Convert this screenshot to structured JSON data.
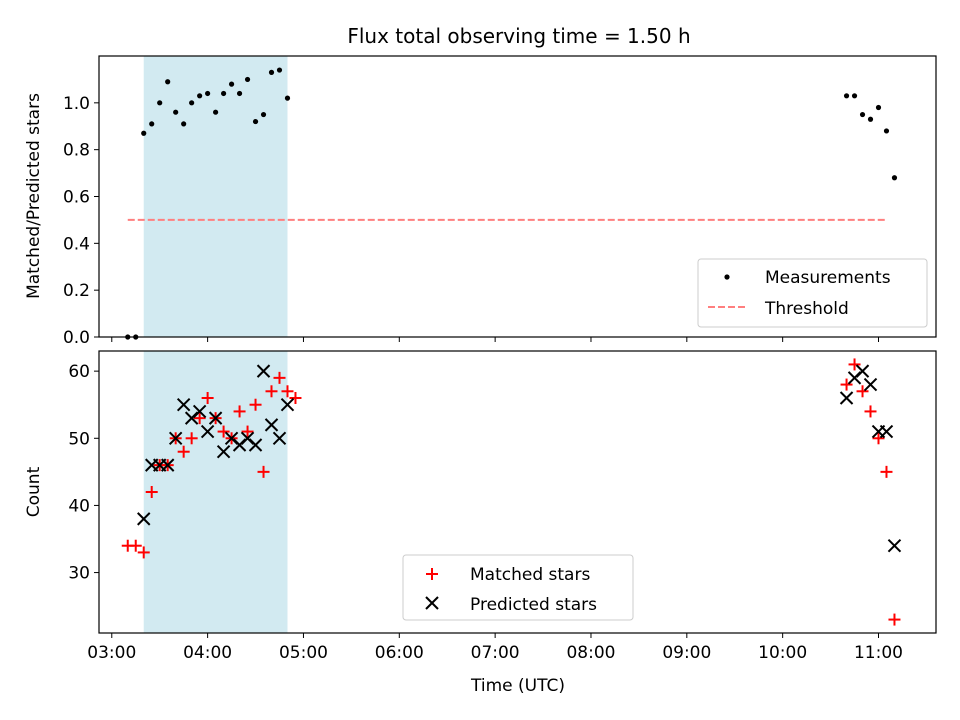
{
  "figure": {
    "title": "Flux total observing time = 1.50 h",
    "xlabel": "Time (UTC)"
  },
  "chart_data": [
    {
      "type": "scatter",
      "panel": "top",
      "ylabel": "Matched/Predicted stars",
      "xlim": [
        "02:52",
        "11:36"
      ],
      "ylim": [
        0,
        1.2
      ],
      "x_ticks": [
        "03:00",
        "04:00",
        "05:00",
        "06:00",
        "07:00",
        "08:00",
        "09:00",
        "10:00",
        "11:00"
      ],
      "y_ticks": [
        "0.0",
        "0.2",
        "0.4",
        "0.6",
        "0.8",
        "1.0"
      ],
      "grid": false,
      "legend": "lower-right",
      "shaded_region": {
        "start": "03:20",
        "end": "04:50",
        "color": "#add8e6"
      },
      "series": [
        {
          "name": "Measurements",
          "marker": "dot",
          "color": "#000000",
          "points": [
            [
              "03:10",
              0.0
            ],
            [
              "03:15",
              0.0
            ],
            [
              "03:20",
              0.87
            ],
            [
              "03:25",
              0.91
            ],
            [
              "03:30",
              1.0
            ],
            [
              "03:35",
              1.09
            ],
            [
              "03:40",
              0.96
            ],
            [
              "03:45",
              0.91
            ],
            [
              "03:50",
              1.0
            ],
            [
              "03:55",
              1.03
            ],
            [
              "04:00",
              1.04
            ],
            [
              "04:05",
              0.96
            ],
            [
              "04:10",
              1.04
            ],
            [
              "04:15",
              1.08
            ],
            [
              "04:20",
              1.04
            ],
            [
              "04:25",
              1.1
            ],
            [
              "04:30",
              0.92
            ],
            [
              "04:35",
              0.95
            ],
            [
              "04:40",
              1.13
            ],
            [
              "04:45",
              1.14
            ],
            [
              "04:50",
              1.02
            ],
            [
              "10:40",
              1.03
            ],
            [
              "10:45",
              1.03
            ],
            [
              "10:50",
              0.95
            ],
            [
              "10:55",
              0.93
            ],
            [
              "11:00",
              0.98
            ],
            [
              "11:05",
              0.88
            ],
            [
              "11:10",
              0.68
            ]
          ]
        },
        {
          "name": "Threshold",
          "style": "dashed",
          "color": "#ff7f7f",
          "line": [
            [
              "03:10",
              0.5
            ],
            [
              "11:05",
              0.5
            ]
          ]
        }
      ]
    },
    {
      "type": "scatter",
      "panel": "bottom",
      "ylabel": "Count",
      "xlim": [
        "02:52",
        "11:36"
      ],
      "ylim": [
        21,
        63
      ],
      "x_ticks": [
        "03:00",
        "04:00",
        "05:00",
        "06:00",
        "07:00",
        "08:00",
        "09:00",
        "10:00",
        "11:00"
      ],
      "y_ticks": [
        "30",
        "40",
        "50",
        "60"
      ],
      "grid": false,
      "legend": "lower-center",
      "shaded_region": {
        "start": "03:20",
        "end": "04:50",
        "color": "#add8e6"
      },
      "series": [
        {
          "name": "Matched stars",
          "marker": "plus",
          "color": "#ff0000",
          "points": [
            [
              "03:10",
              34
            ],
            [
              "03:15",
              34
            ],
            [
              "03:20",
              33
            ],
            [
              "03:25",
              42
            ],
            [
              "03:30",
              46
            ],
            [
              "03:35",
              46
            ],
            [
              "03:40",
              50
            ],
            [
              "03:45",
              48
            ],
            [
              "03:50",
              50
            ],
            [
              "03:55",
              53
            ],
            [
              "04:00",
              56
            ],
            [
              "04:05",
              53
            ],
            [
              "04:10",
              51
            ],
            [
              "04:15",
              50
            ],
            [
              "04:20",
              54
            ],
            [
              "04:25",
              51
            ],
            [
              "04:30",
              55
            ],
            [
              "04:35",
              45
            ],
            [
              "04:40",
              57
            ],
            [
              "04:45",
              59
            ],
            [
              "04:50",
              57
            ],
            [
              "04:55",
              56
            ],
            [
              "10:40",
              58
            ],
            [
              "10:45",
              61
            ],
            [
              "10:50",
              57
            ],
            [
              "10:55",
              54
            ],
            [
              "11:00",
              50
            ],
            [
              "11:05",
              45
            ],
            [
              "11:10",
              23
            ]
          ]
        },
        {
          "name": "Predicted stars",
          "marker": "x",
          "color": "#000000",
          "points": [
            [
              "03:20",
              38
            ],
            [
              "03:25",
              46
            ],
            [
              "03:30",
              46
            ],
            [
              "03:35",
              46
            ],
            [
              "03:40",
              50
            ],
            [
              "03:45",
              55
            ],
            [
              "03:50",
              53
            ],
            [
              "03:55",
              54
            ],
            [
              "04:00",
              51
            ],
            [
              "04:05",
              53
            ],
            [
              "04:10",
              48
            ],
            [
              "04:15",
              50
            ],
            [
              "04:20",
              49
            ],
            [
              "04:25",
              50
            ],
            [
              "04:30",
              49
            ],
            [
              "04:35",
              60
            ],
            [
              "04:40",
              52
            ],
            [
              "04:45",
              50
            ],
            [
              "04:50",
              55
            ],
            [
              "10:40",
              56
            ],
            [
              "10:45",
              59
            ],
            [
              "10:50",
              60
            ],
            [
              "10:55",
              58
            ],
            [
              "11:00",
              51
            ],
            [
              "11:05",
              51
            ],
            [
              "11:10",
              34
            ]
          ]
        }
      ]
    }
  ]
}
